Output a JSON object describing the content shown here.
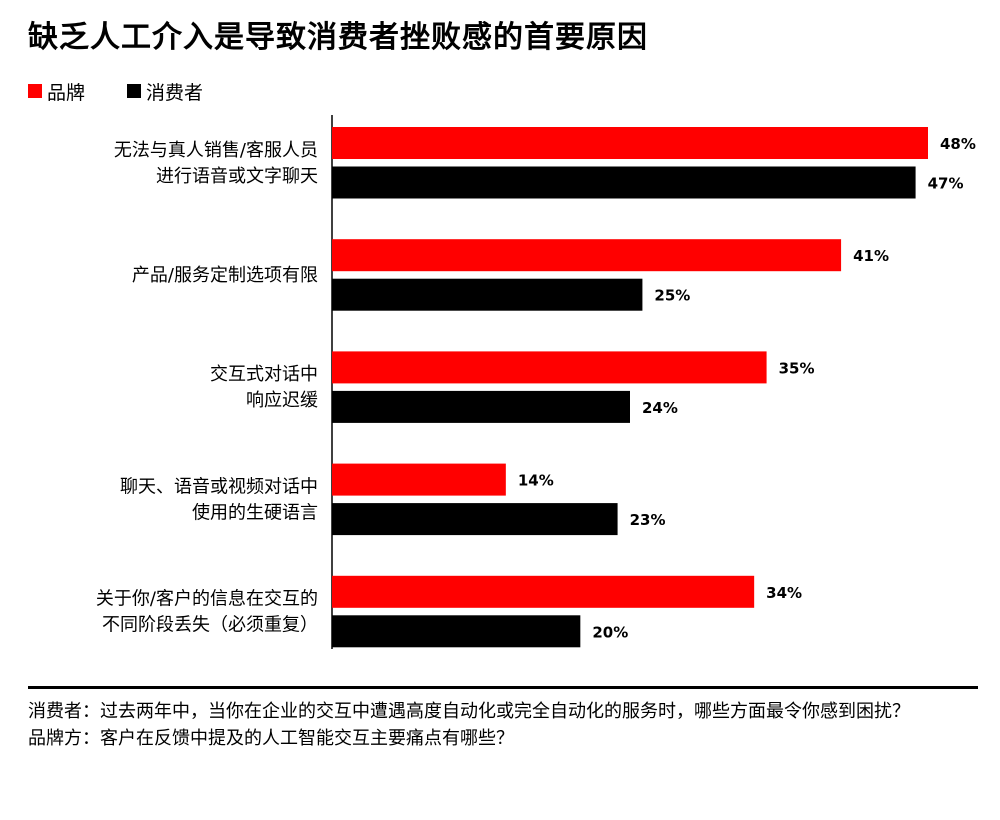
{
  "title": "缺乏人工介入是导致消费者挫败感的首要原因",
  "colors": {
    "brand": "#ff0000",
    "consumer": "#000000",
    "axis": "#000000"
  },
  "legend": [
    {
      "name": "品牌",
      "color": "#ff0000"
    },
    {
      "name": "消费者",
      "color": "#000000"
    }
  ],
  "chart_data": {
    "type": "bar",
    "orientation": "horizontal",
    "title": "缺乏人工介入是导致消费者挫败感的首要原因",
    "categories": [
      [
        "无法与真人销售/客服人员",
        "进行语音或文字聊天"
      ],
      [
        "产品/服务定制选项有限"
      ],
      [
        "交互式对话中",
        "响应迟缓"
      ],
      [
        "聊天、语音或视频对话中",
        "使用的生硬语言"
      ],
      [
        "关于你/客户的信息在交互的",
        "不同阶段丢失（必须重复）"
      ]
    ],
    "series": [
      {
        "name": "品牌",
        "color": "#ff0000",
        "values": [
          48,
          41,
          35,
          14,
          34
        ],
        "labels": [
          "48%",
          "41%",
          "35%",
          "14%",
          "34%"
        ]
      },
      {
        "name": "消费者",
        "color": "#000000",
        "values": [
          47,
          25,
          24,
          23,
          20
        ],
        "labels": [
          "47%",
          "25%",
          "24%",
          "23%",
          "20%"
        ]
      }
    ],
    "unit": "%",
    "xlim": [
      0,
      48
    ],
    "grid": false,
    "legend_position": "top-left"
  },
  "notes": [
    "消费者：过去两年中，当你在企业的交互中遭遇高度自动化或完全自动化的服务时，哪些方面最令你感到困扰？",
    "品牌方：客户在反馈中提及的人工智能交互主要痛点有哪些？"
  ]
}
